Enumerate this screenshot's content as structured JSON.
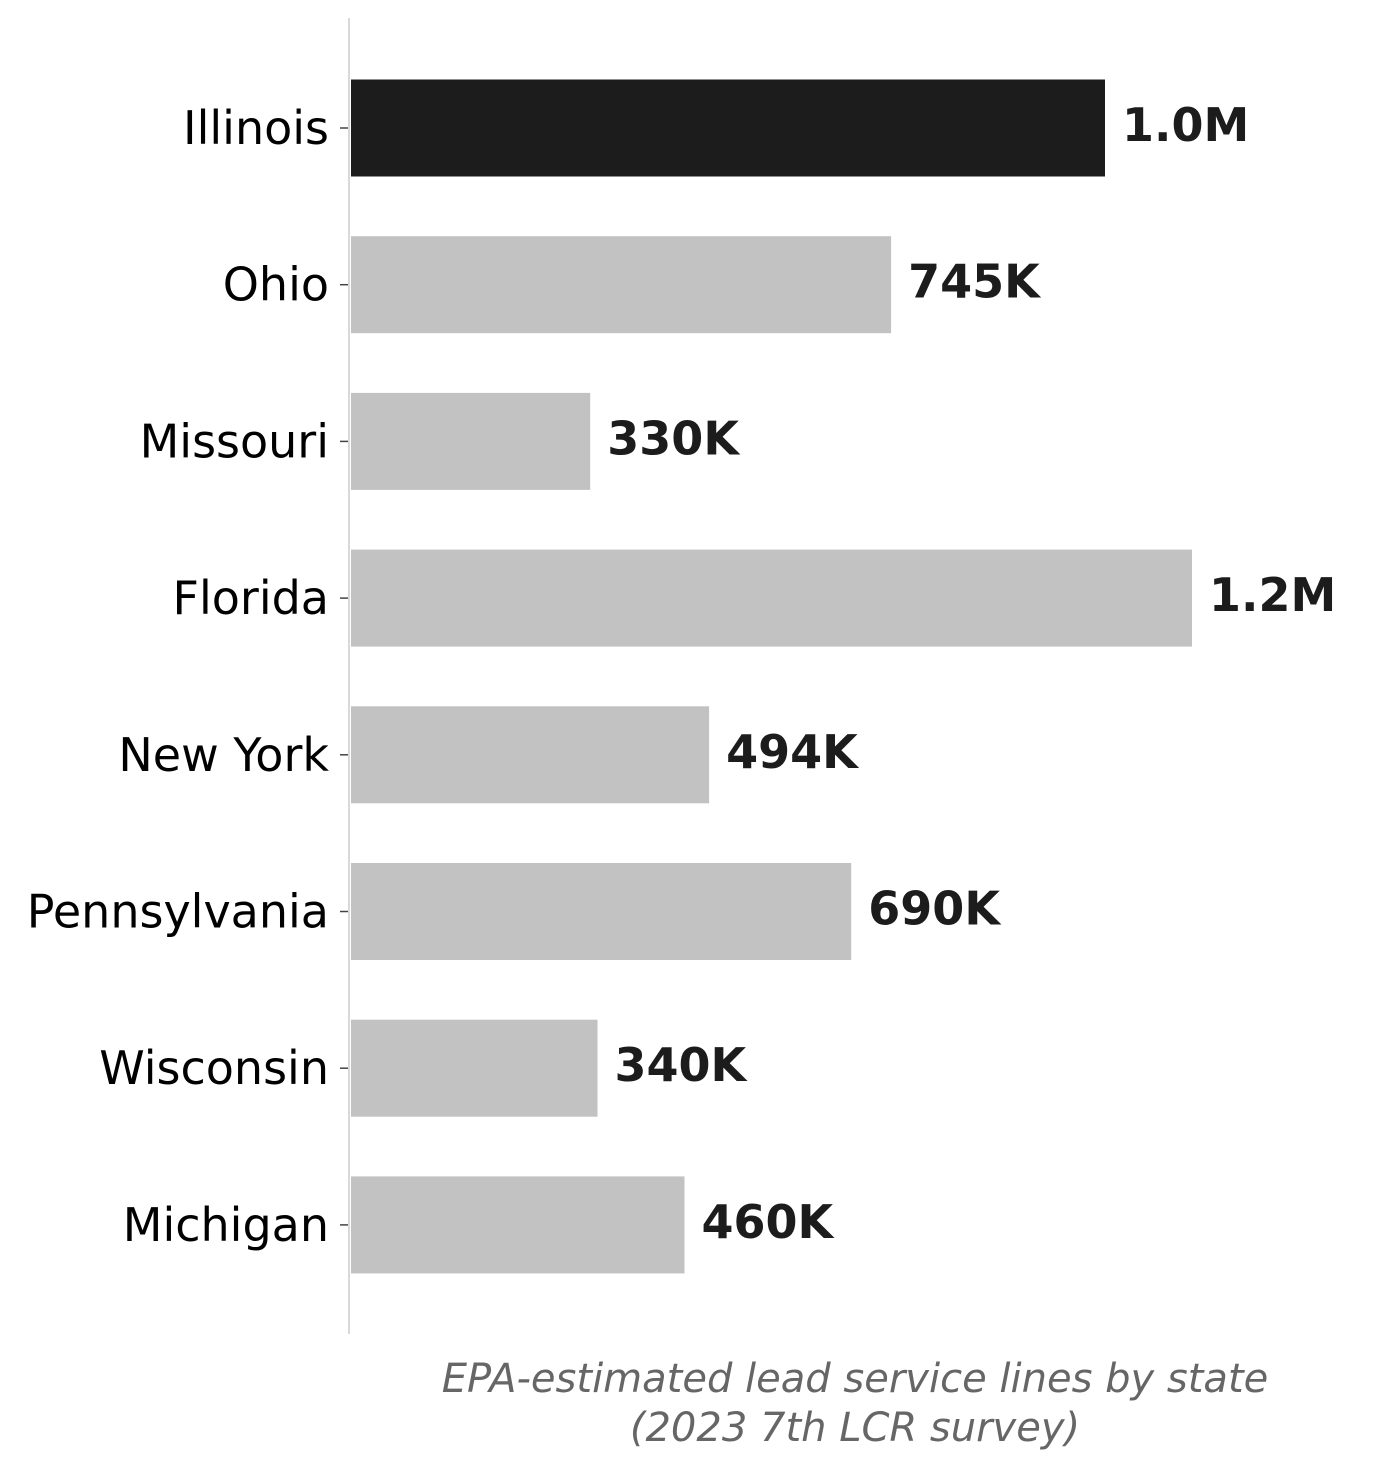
{
  "chart_data": {
    "type": "bar",
    "orientation": "horizontal",
    "categories": [
      "Illinois",
      "Ohio",
      "Missouri",
      "Florida",
      "New York",
      "Pennsylvania",
      "Wisconsin",
      "Michigan"
    ],
    "values": [
      1040000,
      745000,
      330000,
      1160000,
      494000,
      690000,
      340000,
      460000
    ],
    "value_labels": [
      "1.0M",
      "745K",
      "330K",
      "1.2M",
      "494K",
      "690K",
      "340K",
      "460K"
    ],
    "highlight_category": "Illinois",
    "colors": {
      "highlight": "#1c1c1c",
      "default": "#c2c2c2",
      "axis": "#d9d9d9"
    },
    "title": "",
    "xlabel": "",
    "ylabel": "",
    "caption_lines": [
      "EPA-estimated lead service lines by state",
      "(2023 7th LCR survey)"
    ],
    "xlim": [
      0,
      1160000
    ],
    "grid": false,
    "legend": "none"
  }
}
